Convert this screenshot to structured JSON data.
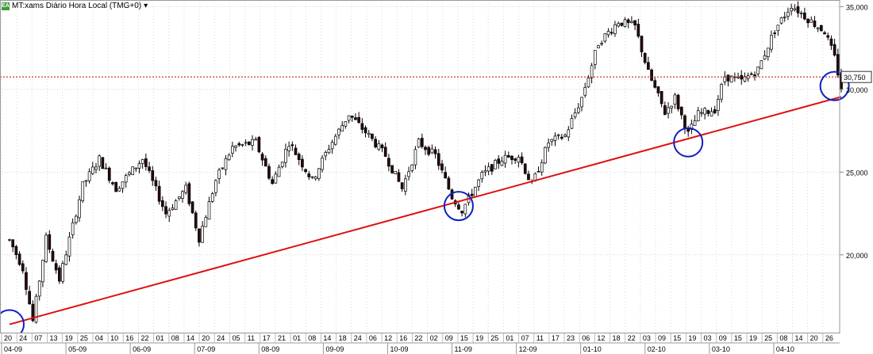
{
  "header": {
    "icon": "EA",
    "title": "MT:xams Diário Hora Local (TMG+0)",
    "arrow": "▾"
  },
  "colors": {
    "up": "#ffffff",
    "down": "#2a0a0a",
    "wick": "#000000",
    "trendline": "#dd1111",
    "price_line": "#cc0000",
    "marker": "#1020c0",
    "grid": "#d8d8d8"
  },
  "chart_data": {
    "type": "candlestick",
    "title": "",
    "y_ticks": [
      20000,
      25000,
      30000,
      35000
    ],
    "y_tick_labels": [
      "20,000",
      "25,000",
      "30,000",
      "35,000"
    ],
    "ylim": [
      15300,
      35400
    ],
    "current_price": 30750,
    "current_price_label": "30,750",
    "day_labels": [
      "20",
      "24",
      "07",
      "13",
      "19",
      "25",
      "04",
      "10",
      "16",
      "22",
      "01",
      "08",
      "14",
      "20",
      "24",
      "05",
      "11",
      "17",
      "21",
      "01",
      "08",
      "14",
      "18",
      "24",
      "06",
      "12",
      "16",
      "22",
      "02",
      "09",
      "15",
      "19",
      "25",
      "01",
      "07",
      "11",
      "17",
      "23",
      "06",
      "12",
      "18",
      "22",
      "03",
      "09",
      "15",
      "19",
      "03",
      "09",
      "15",
      "19",
      "25",
      "08",
      "14",
      "20",
      "26"
    ],
    "month_labels": [
      "04-09",
      "05-09",
      "06-09",
      "07-09",
      "08-09",
      "09-09",
      "10-09",
      "11-09",
      "12-09",
      "01-10",
      "02-10",
      "03-10",
      "04-10"
    ],
    "price_path": [
      [
        0,
        20900
      ],
      [
        4,
        19200
      ],
      [
        7,
        16000
      ],
      [
        11,
        21000
      ],
      [
        15,
        18500
      ],
      [
        22,
        24200
      ],
      [
        27,
        25800
      ],
      [
        32,
        24000
      ],
      [
        40,
        25800
      ],
      [
        47,
        22500
      ],
      [
        53,
        24000
      ],
      [
        57,
        21000
      ],
      [
        62,
        24500
      ],
      [
        67,
        26500
      ],
      [
        74,
        26800
      ],
      [
        79,
        24300
      ],
      [
        84,
        26800
      ],
      [
        91,
        24500
      ],
      [
        96,
        26500
      ],
      [
        102,
        28500
      ],
      [
        108,
        27200
      ],
      [
        113,
        26000
      ],
      [
        118,
        24000
      ],
      [
        123,
        26800
      ],
      [
        128,
        26000
      ],
      [
        133,
        23500
      ],
      [
        136,
        22700
      ],
      [
        142,
        24800
      ],
      [
        148,
        25800
      ],
      [
        153,
        26000
      ],
      [
        157,
        24200
      ],
      [
        162,
        26800
      ],
      [
        167,
        27200
      ],
      [
        172,
        29500
      ],
      [
        177,
        32800
      ],
      [
        183,
        34100
      ],
      [
        188,
        33800
      ],
      [
        192,
        31000
      ],
      [
        197,
        28600
      ],
      [
        200,
        29500
      ],
      [
        204,
        27300
      ],
      [
        207,
        28500
      ],
      [
        212,
        28800
      ],
      [
        215,
        30800
      ],
      [
        220,
        30500
      ],
      [
        225,
        31200
      ],
      [
        230,
        33600
      ],
      [
        235,
        35100
      ],
      [
        241,
        34100
      ],
      [
        245,
        33500
      ],
      [
        248,
        31900
      ],
      [
        250,
        30100
      ]
    ],
    "trendline": [
      [
        0,
        15800
      ],
      [
        250,
        29550
      ]
    ],
    "circled_points": [
      [
        0,
        15800
      ],
      [
        135,
        22950
      ],
      [
        204,
        26800
      ],
      [
        248,
        30200
      ]
    ]
  }
}
